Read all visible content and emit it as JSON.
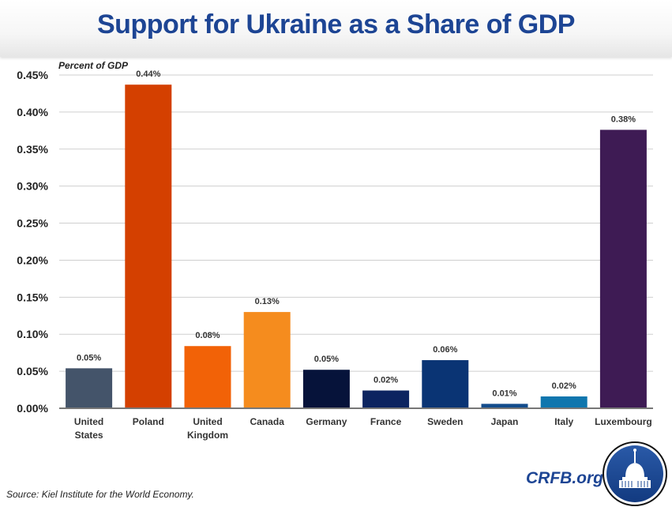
{
  "header": {
    "title": "Support for Ukraine as a Share of GDP"
  },
  "footer": {
    "source": "Source: Kiel Institute for the World Economy.",
    "brand": "CRFB.org",
    "logo_icon": "capitol-dome-icon"
  },
  "chart_data": {
    "type": "bar",
    "title": "Support for Ukraine as a Share of GDP",
    "ylabel": "Percent of GDP",
    "xlabel": "",
    "ylim": [
      0,
      0.45
    ],
    "grid": true,
    "y_ticks": [
      0,
      0.05,
      0.1,
      0.15,
      0.2,
      0.25,
      0.3,
      0.35,
      0.4,
      0.45
    ],
    "y_tick_labels": [
      "0.00%",
      "0.05%",
      "0.10%",
      "0.15%",
      "0.20%",
      "0.25%",
      "0.30%",
      "0.35%",
      "0.40%",
      "0.45%"
    ],
    "categories": [
      [
        "United",
        "States"
      ],
      [
        "Poland"
      ],
      [
        "United",
        "Kingdom"
      ],
      [
        "Canada"
      ],
      [
        "Germany"
      ],
      [
        "France"
      ],
      [
        "Sweden"
      ],
      [
        "Japan"
      ],
      [
        "Italy"
      ],
      [
        "Luxembourg"
      ]
    ],
    "values": [
      0.054,
      0.437,
      0.084,
      0.13,
      0.052,
      0.024,
      0.065,
      0.006,
      0.016,
      0.376
    ],
    "data_labels": [
      "0.05%",
      "0.44%",
      "0.08%",
      "0.13%",
      "0.05%",
      "0.02%",
      "0.06%",
      "0.01%",
      "0.02%",
      "0.38%"
    ],
    "colors": [
      "#44546a",
      "#d44000",
      "#f26207",
      "#f58c1e",
      "#06133a",
      "#0c2460",
      "#0a3474",
      "#124c8c",
      "#0f76ae",
      "#3e1b54"
    ]
  }
}
